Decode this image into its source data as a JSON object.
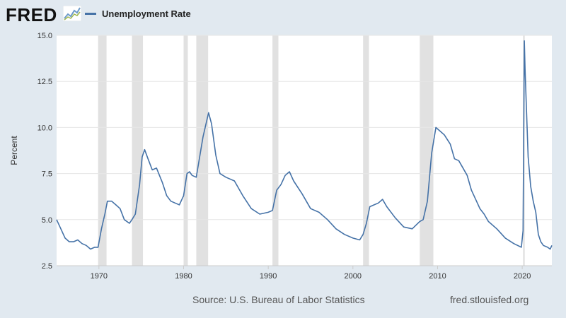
{
  "brand": {
    "logo_text": "FRED",
    "logo_icon": "fred-chart-icon"
  },
  "footer": {
    "source": "Source: U.S. Bureau of Labor Statistics",
    "url": "fred.stlouisfed.org"
  },
  "colors": {
    "line": "#4572a7",
    "recession": "#e1e1e1",
    "grid": "#e6e6e6",
    "background": "#e1e9f0",
    "plot_bg": "#ffffff"
  },
  "chart_data": {
    "type": "line",
    "title": "",
    "xlabel": "",
    "ylabel": "Percent",
    "xlim": [
      1965,
      2023.5
    ],
    "ylim": [
      2.5,
      15.0
    ],
    "grid": true,
    "legend": "top-left",
    "yticks": [
      "2.5",
      "5.0",
      "7.5",
      "10.0",
      "12.5",
      "15.0"
    ],
    "xticks": [
      "1970",
      "1980",
      "1990",
      "2000",
      "2010",
      "2020"
    ],
    "recessions": [
      [
        1969.9,
        1970.9
      ],
      [
        1973.9,
        1975.2
      ],
      [
        1980.0,
        1980.5
      ],
      [
        1981.5,
        1982.9
      ],
      [
        1990.5,
        1991.2
      ],
      [
        2001.2,
        2001.9
      ],
      [
        2007.9,
        2009.5
      ],
      [
        2020.1,
        2020.3
      ]
    ],
    "series": [
      {
        "name": "Unemployment Rate",
        "x": [
          1965.0,
          1965.5,
          1966.0,
          1966.5,
          1967.0,
          1967.5,
          1968.0,
          1968.5,
          1969.0,
          1969.5,
          1969.9,
          1970.3,
          1970.7,
          1971.0,
          1971.5,
          1972.0,
          1972.5,
          1973.0,
          1973.6,
          1973.9,
          1974.3,
          1974.8,
          1975.1,
          1975.4,
          1975.8,
          1976.3,
          1976.8,
          1977.5,
          1978.0,
          1978.5,
          1979.0,
          1979.5,
          1980.0,
          1980.4,
          1980.7,
          1981.0,
          1981.5,
          1981.9,
          1982.3,
          1982.7,
          1982.95,
          1983.3,
          1983.8,
          1984.3,
          1985.0,
          1986.0,
          1987.0,
          1988.0,
          1989.0,
          1990.0,
          1990.5,
          1991.0,
          1991.5,
          1992.0,
          1992.5,
          1993.0,
          1994.0,
          1995.0,
          1996.0,
          1997.0,
          1998.0,
          1999.0,
          2000.0,
          2000.8,
          2001.2,
          2001.6,
          2002.0,
          2002.5,
          2003.0,
          2003.5,
          2004.0,
          2005.0,
          2006.0,
          2007.0,
          2007.9,
          2008.3,
          2008.8,
          2009.3,
          2009.8,
          2010.3,
          2010.8,
          2011.5,
          2012.0,
          2012.5,
          2013.0,
          2013.5,
          2014.0,
          2014.5,
          2015.0,
          2015.5,
          2016.0,
          2017.0,
          2018.0,
          2019.0,
          2019.9,
          2020.1,
          2020.25,
          2020.33,
          2020.5,
          2020.7,
          2021.0,
          2021.3,
          2021.6,
          2021.9,
          2022.2,
          2022.5,
          2023.0,
          2023.3,
          2023.5
        ],
        "values": [
          5.0,
          4.5,
          4.0,
          3.8,
          3.8,
          3.9,
          3.7,
          3.6,
          3.4,
          3.5,
          3.5,
          4.5,
          5.3,
          6.0,
          6.0,
          5.8,
          5.6,
          5.0,
          4.8,
          5.0,
          5.3,
          6.9,
          8.4,
          8.8,
          8.3,
          7.7,
          7.8,
          7.0,
          6.3,
          6.0,
          5.9,
          5.8,
          6.3,
          7.5,
          7.6,
          7.4,
          7.3,
          8.4,
          9.5,
          10.3,
          10.8,
          10.2,
          8.5,
          7.5,
          7.3,
          7.1,
          6.3,
          5.6,
          5.3,
          5.4,
          5.5,
          6.6,
          6.9,
          7.4,
          7.6,
          7.1,
          6.4,
          5.6,
          5.4,
          5.0,
          4.5,
          4.2,
          4.0,
          3.9,
          4.2,
          4.8,
          5.7,
          5.8,
          5.9,
          6.1,
          5.7,
          5.1,
          4.6,
          4.5,
          4.9,
          5.0,
          6.0,
          8.6,
          10.0,
          9.8,
          9.6,
          9.1,
          8.3,
          8.2,
          7.8,
          7.4,
          6.6,
          6.1,
          5.6,
          5.3,
          4.9,
          4.5,
          4.0,
          3.7,
          3.5,
          4.4,
          14.7,
          13.2,
          11.0,
          8.4,
          6.8,
          6.0,
          5.4,
          4.2,
          3.8,
          3.6,
          3.5,
          3.4,
          3.6
        ]
      }
    ]
  }
}
